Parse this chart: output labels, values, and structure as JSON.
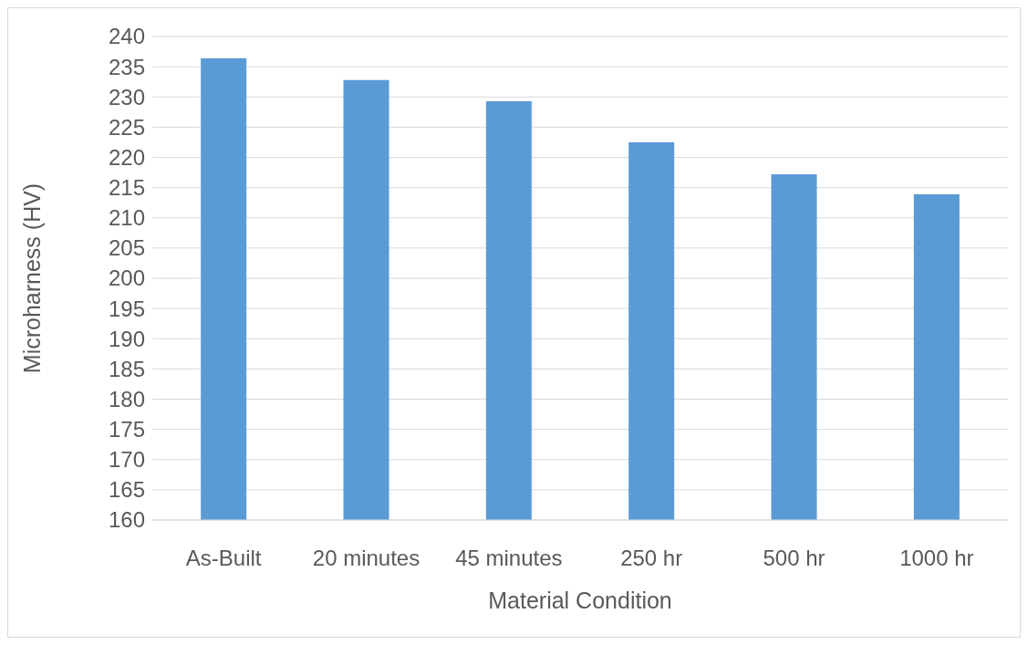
{
  "chart_data": {
    "type": "bar",
    "xlabel": "Material Condition",
    "ylabel": "Microharness (HV)",
    "categories": [
      "As-Built",
      "20 minutes",
      "45 minutes",
      "250 hr",
      "500 hr",
      "1000 hr"
    ],
    "values": [
      236.4,
      232.8,
      229.3,
      222.5,
      217.2,
      213.9
    ],
    "color": "#5b9bd5",
    "ylim": [
      160,
      240
    ],
    "yticks": [
      160,
      165,
      170,
      175,
      180,
      185,
      190,
      195,
      200,
      205,
      210,
      215,
      220,
      225,
      230,
      235,
      240
    ],
    "grid": "y"
  }
}
